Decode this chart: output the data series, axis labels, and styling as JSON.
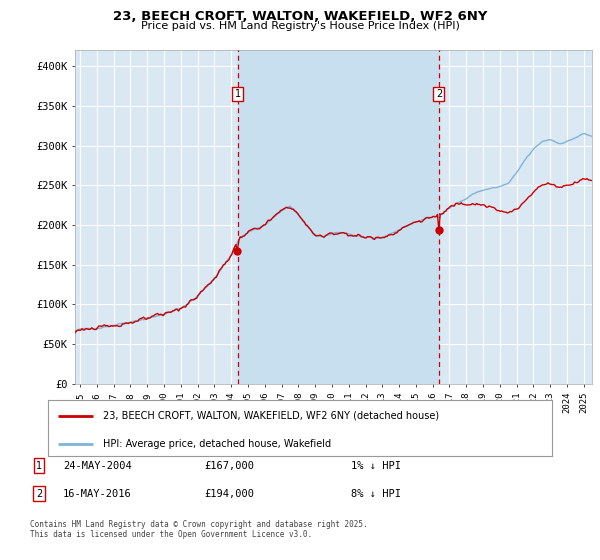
{
  "title": "23, BEECH CROFT, WALTON, WAKEFIELD, WF2 6NY",
  "subtitle": "Price paid vs. HM Land Registry's House Price Index (HPI)",
  "legend_line1": "23, BEECH CROFT, WALTON, WAKEFIELD, WF2 6NY (detached house)",
  "legend_line2": "HPI: Average price, detached house, Wakefield",
  "sale1_date": "24-MAY-2004",
  "sale1_price": 167000,
  "sale1_label": "1% ↓ HPI",
  "sale2_date": "16-MAY-2016",
  "sale2_price": 194000,
  "sale2_label": "8% ↓ HPI",
  "sale1_x": 2004.39,
  "sale2_x": 2016.37,
  "ylim": [
    0,
    420000
  ],
  "xlim_start": 1994.7,
  "xlim_end": 2025.5,
  "background_color": "#ffffff",
  "plot_bg_color": "#dae8f4",
  "shaded_bg_color": "#ccdff0",
  "grid_color": "#e8e8e8",
  "hpi_color": "#7fb4d8",
  "price_color": "#cc0000",
  "dashed_line_color": "#cc0000",
  "sale_marker_color": "#cc0000",
  "footer": "Contains HM Land Registry data © Crown copyright and database right 2025.\nThis data is licensed under the Open Government Licence v3.0.",
  "xticks": [
    1995,
    1996,
    1997,
    1998,
    1999,
    2000,
    2001,
    2002,
    2003,
    2004,
    2005,
    2006,
    2007,
    2008,
    2009,
    2010,
    2011,
    2012,
    2013,
    2014,
    2015,
    2016,
    2017,
    2018,
    2019,
    2020,
    2021,
    2022,
    2023,
    2024,
    2025
  ],
  "yticks": [
    0,
    50000,
    100000,
    150000,
    200000,
    250000,
    300000,
    350000,
    400000
  ]
}
